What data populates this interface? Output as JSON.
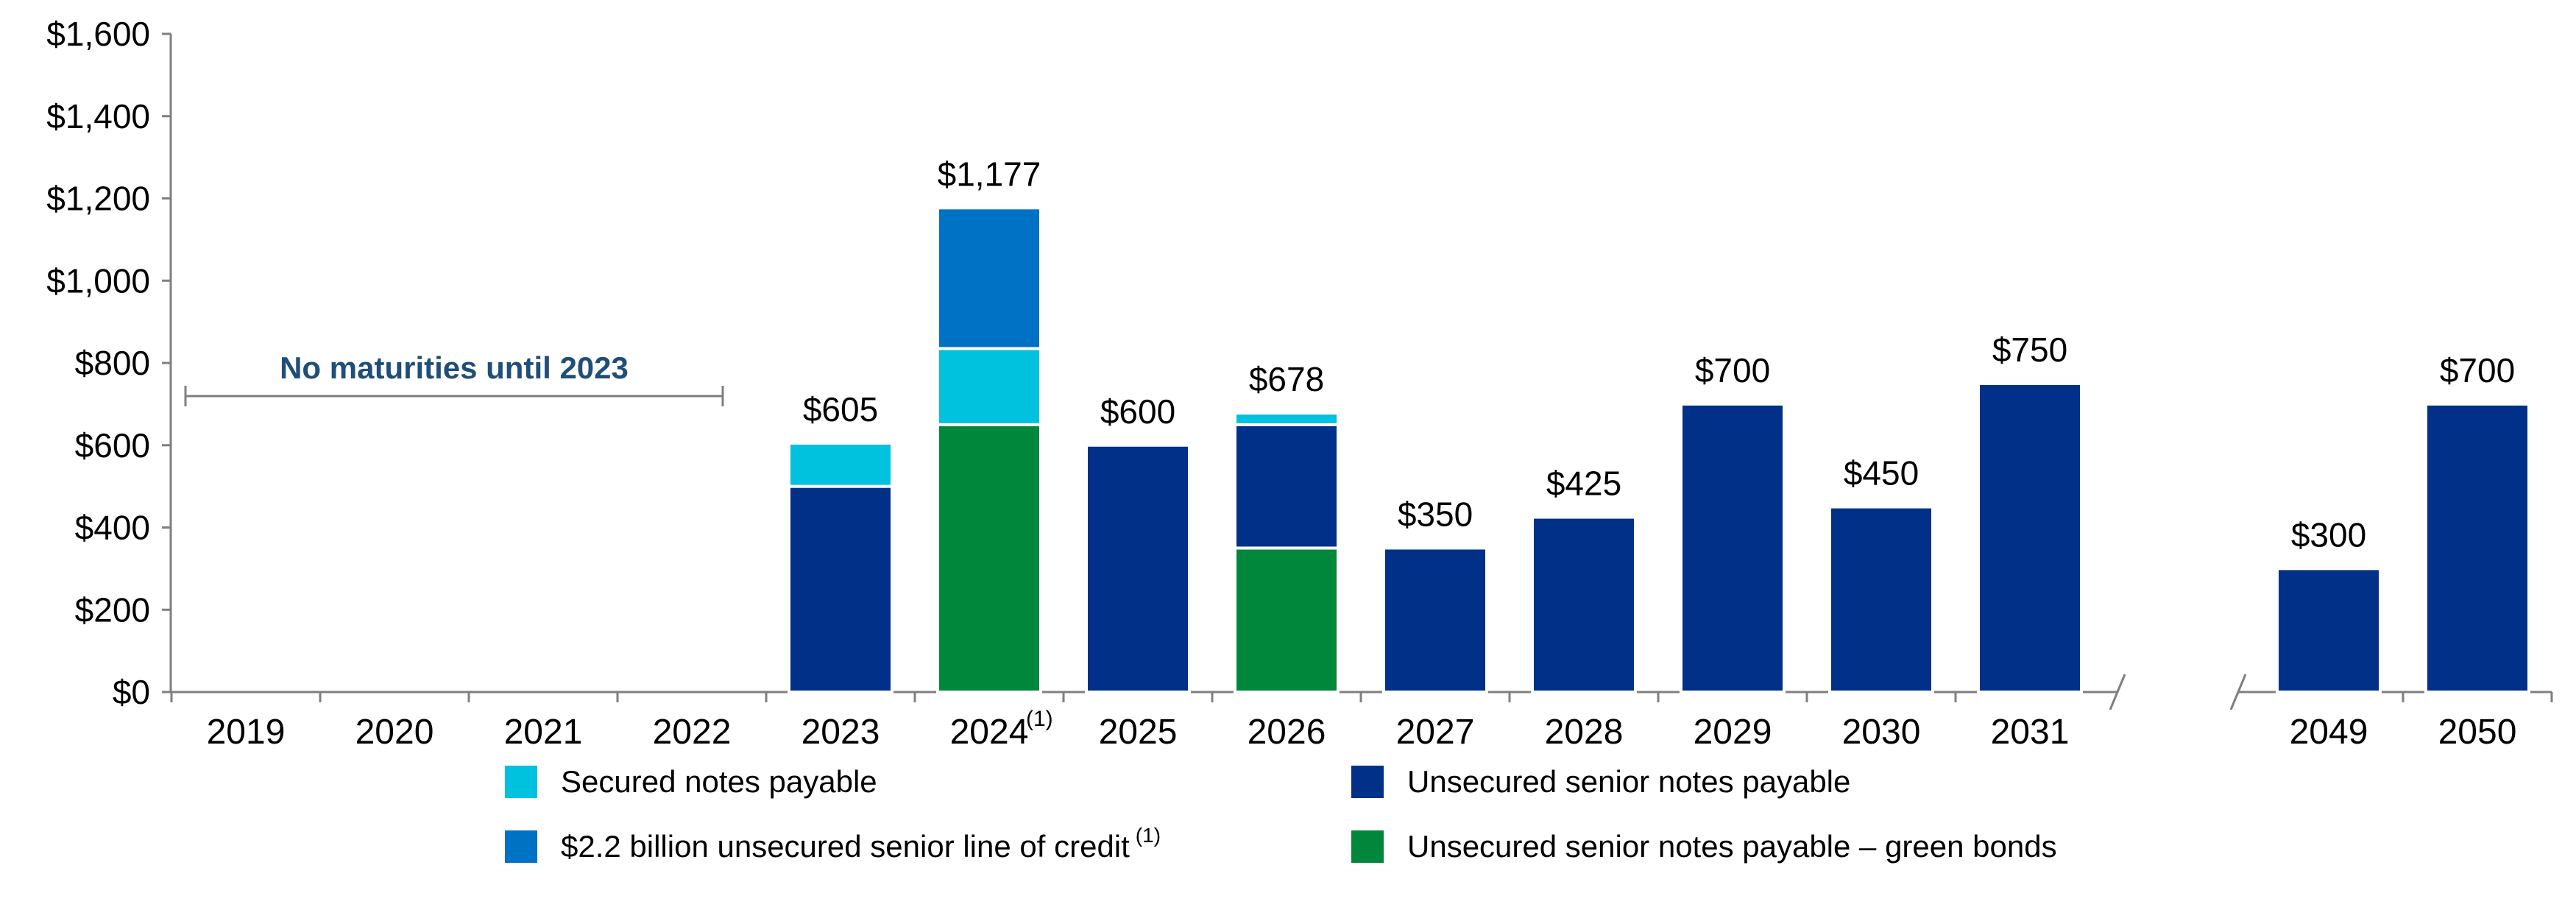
{
  "chart_data": {
    "type": "bar",
    "stacked": true,
    "categories": [
      "2019",
      "2020",
      "2021",
      "2022",
      "2023",
      "2024",
      "2025",
      "2026",
      "2027",
      "2028",
      "2029",
      "2030",
      "2031",
      "2049",
      "2050"
    ],
    "category_superscripts": {
      "2024": "(1)"
    },
    "axis_break_after": "2031",
    "series": [
      {
        "name": "Unsecured senior notes payable – green bonds",
        "color": "#00873C",
        "values": [
          0,
          0,
          0,
          0,
          0,
          650,
          0,
          350,
          0,
          0,
          0,
          0,
          0,
          0,
          0
        ]
      },
      {
        "name": "Unsecured senior notes payable",
        "color": "#003087",
        "values": [
          0,
          0,
          0,
          0,
          500,
          0,
          600,
          300,
          350,
          425,
          700,
          450,
          750,
          300,
          700
        ]
      },
      {
        "name": "Secured notes payable",
        "color": "#00C1DE",
        "values": [
          0,
          0,
          0,
          0,
          105,
          185,
          0,
          28,
          0,
          0,
          0,
          0,
          0,
          0,
          0
        ]
      },
      {
        "name": "$2.2 billion unsecured senior line of credit",
        "color": "#0072C6",
        "values": [
          0,
          0,
          0,
          0,
          0,
          342,
          0,
          0,
          0,
          0,
          0,
          0,
          0,
          0,
          0
        ]
      }
    ],
    "totals": [
      null,
      null,
      null,
      null,
      605,
      1177,
      600,
      678,
      350,
      425,
      700,
      450,
      750,
      300,
      700
    ],
    "total_labels": [
      "",
      "",
      "",
      "",
      "$605",
      "$1,177",
      "$600",
      "$678",
      "$350",
      "$425",
      "$700",
      "$450",
      "$750",
      "$300",
      "$700"
    ],
    "ylim": [
      0,
      1600
    ],
    "yticks": [
      0,
      200,
      400,
      600,
      800,
      1000,
      1200,
      1400,
      1600
    ],
    "ytick_labels": [
      "$0",
      "$200",
      "$400",
      "$600",
      "$800",
      "$1,000",
      "$1,200",
      "$1,400",
      "$1,600"
    ],
    "annotation": {
      "text": "No maturities until 2023",
      "from": "2019",
      "to": "2022",
      "color": "#1F4E79"
    },
    "legend": [
      {
        "label": "Secured notes payable",
        "color": "#00C1DE",
        "superscript": ""
      },
      {
        "label": "Unsecured senior notes payable",
        "color": "#003087",
        "superscript": ""
      },
      {
        "label": "$2.2 billion unsecured senior line of credit",
        "color": "#0072C6",
        "superscript": "(1)"
      },
      {
        "label": "Unsecured senior notes payable – green bonds",
        "color": "#00873C",
        "superscript": ""
      }
    ],
    "legend_position": "bottom-center",
    "grid": false
  }
}
